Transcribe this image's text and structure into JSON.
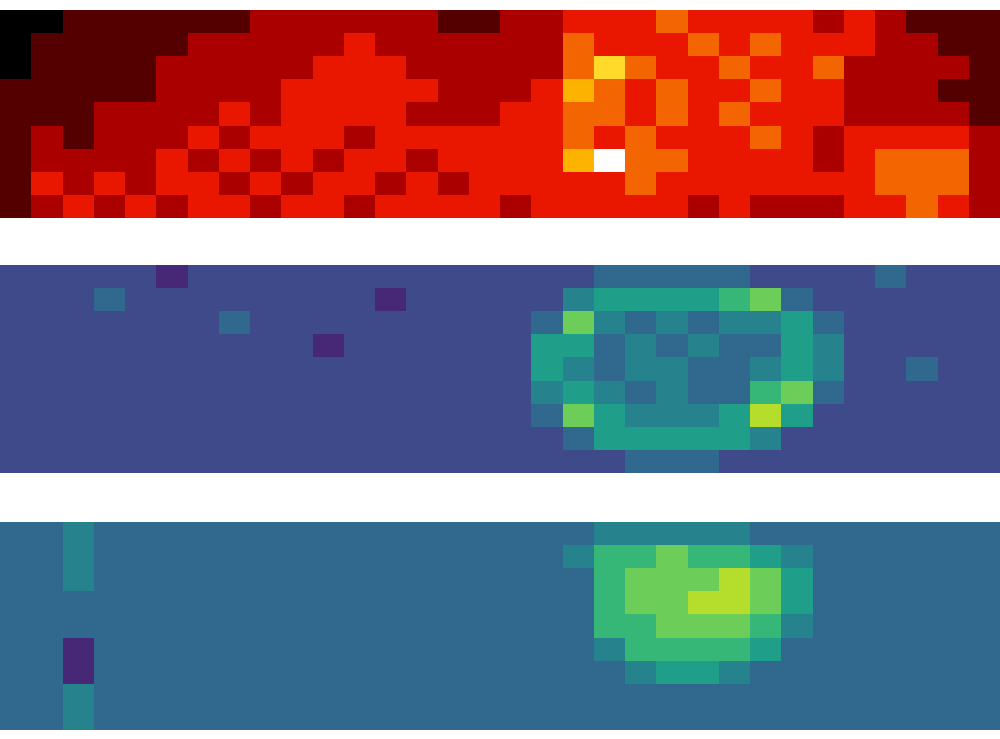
{
  "chart_data": [
    {
      "type": "heatmap",
      "color": "Hot",
      "zlim": [
        0,
        9
      ],
      "tick_labels": false,
      "z": [
        [
          0,
          0,
          1,
          1,
          1,
          1,
          1,
          1,
          2,
          2,
          2,
          2,
          2,
          2,
          1,
          1,
          2,
          2,
          3,
          3,
          3,
          4,
          3,
          3,
          3,
          3,
          2,
          3,
          2,
          1,
          1,
          1
        ],
        [
          0,
          1,
          1,
          1,
          1,
          1,
          2,
          2,
          2,
          2,
          2,
          3,
          2,
          2,
          2,
          2,
          2,
          2,
          4,
          3,
          3,
          3,
          4,
          3,
          4,
          3,
          3,
          3,
          2,
          2,
          1,
          1
        ],
        [
          0,
          1,
          1,
          1,
          1,
          2,
          2,
          2,
          2,
          2,
          3,
          3,
          3,
          2,
          2,
          2,
          2,
          2,
          4,
          6,
          4,
          3,
          3,
          4,
          3,
          3,
          4,
          2,
          2,
          2,
          2,
          1
        ],
        [
          1,
          1,
          1,
          1,
          1,
          2,
          2,
          2,
          2,
          3,
          3,
          3,
          3,
          3,
          2,
          2,
          2,
          3,
          5,
          4,
          3,
          4,
          3,
          3,
          4,
          3,
          3,
          2,
          2,
          2,
          1,
          1
        ],
        [
          1,
          1,
          1,
          2,
          2,
          2,
          2,
          3,
          2,
          3,
          3,
          3,
          3,
          2,
          2,
          2,
          3,
          3,
          4,
          4,
          3,
          4,
          3,
          4,
          3,
          3,
          3,
          2,
          2,
          2,
          2,
          1
        ],
        [
          1,
          2,
          1,
          2,
          2,
          2,
          3,
          2,
          3,
          3,
          3,
          2,
          3,
          3,
          3,
          3,
          3,
          3,
          4,
          3,
          4,
          3,
          3,
          3,
          4,
          3,
          2,
          3,
          3,
          3,
          3,
          2
        ],
        [
          1,
          2,
          2,
          2,
          2,
          3,
          2,
          3,
          2,
          3,
          2,
          3,
          3,
          2,
          3,
          3,
          3,
          3,
          5,
          9,
          4,
          4,
          3,
          3,
          3,
          3,
          2,
          3,
          4,
          4,
          4,
          2
        ],
        [
          1,
          3,
          2,
          3,
          2,
          3,
          3,
          2,
          3,
          2,
          3,
          3,
          2,
          3,
          2,
          3,
          3,
          3,
          3,
          3,
          4,
          3,
          3,
          3,
          3,
          3,
          3,
          3,
          4,
          4,
          4,
          2
        ],
        [
          1,
          2,
          3,
          2,
          3,
          2,
          3,
          3,
          2,
          3,
          3,
          2,
          3,
          3,
          3,
          3,
          2,
          3,
          3,
          3,
          3,
          3,
          2,
          3,
          2,
          2,
          2,
          3,
          3,
          4,
          3,
          2
        ]
      ]
    },
    {
      "type": "heatmap",
      "color": "Viridis",
      "zlim": [
        0,
        9
      ],
      "tick_labels": false,
      "z": [
        [
          2,
          2,
          2,
          2,
          2,
          1,
          2,
          2,
          2,
          2,
          2,
          2,
          2,
          2,
          2,
          2,
          2,
          2,
          2,
          3,
          3,
          3,
          3,
          3,
          2,
          2,
          2,
          2,
          3,
          2,
          2,
          2
        ],
        [
          2,
          2,
          2,
          3,
          2,
          2,
          2,
          2,
          2,
          2,
          2,
          2,
          1,
          2,
          2,
          2,
          2,
          2,
          4,
          5,
          5,
          5,
          5,
          6,
          7,
          3,
          2,
          2,
          2,
          2,
          2,
          2
        ],
        [
          2,
          2,
          2,
          2,
          2,
          2,
          2,
          3,
          2,
          2,
          2,
          2,
          2,
          2,
          2,
          2,
          2,
          3,
          7,
          4,
          3,
          4,
          3,
          4,
          4,
          5,
          3,
          2,
          2,
          2,
          2,
          2
        ],
        [
          2,
          2,
          2,
          2,
          2,
          2,
          2,
          2,
          2,
          2,
          1,
          2,
          2,
          2,
          2,
          2,
          2,
          5,
          5,
          3,
          4,
          3,
          4,
          3,
          3,
          5,
          4,
          2,
          2,
          2,
          2,
          2
        ],
        [
          2,
          2,
          2,
          2,
          2,
          2,
          2,
          2,
          2,
          2,
          2,
          2,
          2,
          2,
          2,
          2,
          2,
          5,
          4,
          3,
          4,
          4,
          3,
          3,
          4,
          5,
          4,
          2,
          2,
          3,
          2,
          2
        ],
        [
          2,
          2,
          2,
          2,
          2,
          2,
          2,
          2,
          2,
          2,
          2,
          2,
          2,
          2,
          2,
          2,
          2,
          4,
          5,
          4,
          3,
          4,
          3,
          3,
          6,
          7,
          3,
          2,
          2,
          2,
          2,
          2
        ],
        [
          2,
          2,
          2,
          2,
          2,
          2,
          2,
          2,
          2,
          2,
          2,
          2,
          2,
          2,
          2,
          2,
          2,
          3,
          7,
          5,
          4,
          4,
          4,
          5,
          8,
          5,
          2,
          2,
          2,
          2,
          2,
          2
        ],
        [
          2,
          2,
          2,
          2,
          2,
          2,
          2,
          2,
          2,
          2,
          2,
          2,
          2,
          2,
          2,
          2,
          2,
          2,
          3,
          5,
          5,
          5,
          5,
          5,
          4,
          2,
          2,
          2,
          2,
          2,
          2,
          2
        ],
        [
          2,
          2,
          2,
          2,
          2,
          2,
          2,
          2,
          2,
          2,
          2,
          2,
          2,
          2,
          2,
          2,
          2,
          2,
          2,
          2,
          3,
          3,
          3,
          2,
          2,
          2,
          2,
          2,
          2,
          2,
          2,
          2
        ]
      ]
    },
    {
      "type": "heatmap",
      "color": "Viridis",
      "zlim": [
        0,
        9
      ],
      "tick_labels": false,
      "z": [
        [
          3,
          3,
          4,
          3,
          3,
          3,
          3,
          3,
          3,
          3,
          3,
          3,
          3,
          3,
          3,
          3,
          3,
          3,
          3,
          4,
          4,
          4,
          4,
          4,
          3,
          3,
          3,
          3,
          3,
          3,
          3,
          3
        ],
        [
          3,
          3,
          4,
          3,
          3,
          3,
          3,
          3,
          3,
          3,
          3,
          3,
          3,
          3,
          3,
          3,
          3,
          3,
          4,
          6,
          6,
          7,
          6,
          6,
          5,
          4,
          3,
          3,
          3,
          3,
          3,
          3
        ],
        [
          3,
          3,
          4,
          3,
          3,
          3,
          3,
          3,
          3,
          3,
          3,
          3,
          3,
          3,
          3,
          3,
          3,
          3,
          3,
          6,
          7,
          7,
          7,
          8,
          7,
          5,
          3,
          3,
          3,
          3,
          3,
          3
        ],
        [
          3,
          3,
          3,
          3,
          3,
          3,
          3,
          3,
          3,
          3,
          3,
          3,
          3,
          3,
          3,
          3,
          3,
          3,
          3,
          6,
          7,
          7,
          8,
          8,
          7,
          5,
          3,
          3,
          3,
          3,
          3,
          3
        ],
        [
          3,
          3,
          3,
          3,
          3,
          3,
          3,
          3,
          3,
          3,
          3,
          3,
          3,
          3,
          3,
          3,
          3,
          3,
          3,
          6,
          6,
          7,
          7,
          7,
          6,
          4,
          3,
          3,
          3,
          3,
          3,
          3
        ],
        [
          3,
          3,
          1,
          3,
          3,
          3,
          3,
          3,
          3,
          3,
          3,
          3,
          3,
          3,
          3,
          3,
          3,
          3,
          3,
          4,
          6,
          6,
          6,
          6,
          5,
          3,
          3,
          3,
          3,
          3,
          3,
          3
        ],
        [
          3,
          3,
          1,
          3,
          3,
          3,
          3,
          3,
          3,
          3,
          3,
          3,
          3,
          3,
          3,
          3,
          3,
          3,
          3,
          3,
          4,
          5,
          5,
          4,
          3,
          3,
          3,
          3,
          3,
          3,
          3,
          3
        ],
        [
          3,
          3,
          4,
          3,
          3,
          3,
          3,
          3,
          3,
          3,
          3,
          3,
          3,
          3,
          3,
          3,
          3,
          3,
          3,
          3,
          3,
          3,
          3,
          3,
          3,
          3,
          3,
          3,
          3,
          3,
          3,
          3
        ],
        [
          3,
          3,
          4,
          3,
          3,
          3,
          3,
          3,
          3,
          3,
          3,
          3,
          3,
          3,
          3,
          3,
          3,
          3,
          3,
          3,
          3,
          3,
          3,
          3,
          3,
          3,
          3,
          3,
          3,
          3,
          3,
          3
        ]
      ]
    }
  ]
}
